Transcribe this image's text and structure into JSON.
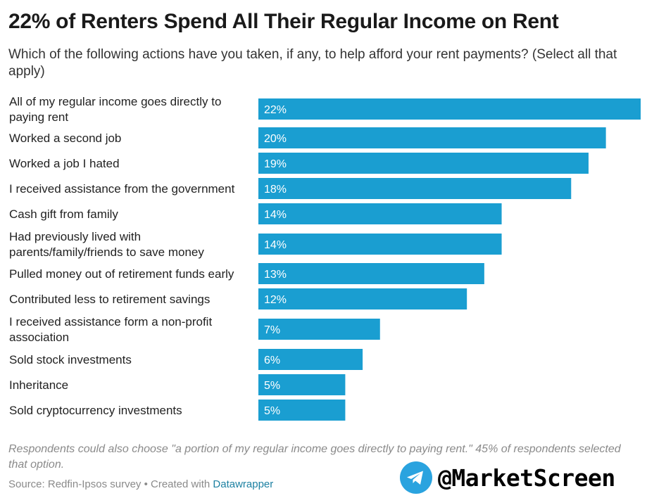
{
  "header": {
    "title": "22% of Renters Spend All Their Regular Income on Rent",
    "subtitle": "Which of the following actions have you taken, if any, to help afford your rent payments? (Select all that apply)"
  },
  "chart_data": {
    "type": "bar",
    "orientation": "horizontal",
    "title": "22% of Renters Spend All Their Regular Income on Rent",
    "subtitle": "Which of the following actions have you taken, if any, to help afford your rent payments? (Select all that apply)",
    "xlim": [
      0,
      22
    ],
    "grid": false,
    "bar_color": "#1a9ed1",
    "categories": [
      [
        "All of my regular income goes directly to",
        "paying rent"
      ],
      [
        "Worked a second job"
      ],
      [
        "Worked a job I hated"
      ],
      [
        "I received assistance from the government"
      ],
      [
        "Cash gift from family"
      ],
      [
        "Had previously lived with",
        "parents/family/friends to save money"
      ],
      [
        "Pulled money out of retirement funds early"
      ],
      [
        "Contributed less to retirement savings"
      ],
      [
        "I received assistance form a non-profit",
        "association"
      ],
      [
        "Sold stock investments"
      ],
      [
        "Inheritance"
      ],
      [
        "Sold cryptocurrency investments"
      ]
    ],
    "values": [
      22,
      20,
      19,
      18,
      14,
      14,
      13,
      12,
      7,
      6,
      5,
      5
    ],
    "value_labels": [
      "22%",
      "20%",
      "19%",
      "18%",
      "14%",
      "14%",
      "13%",
      "12%",
      "7%",
      "6%",
      "5%",
      "5%"
    ]
  },
  "footer": {
    "note": "Respondents could also choose \"a portion of my regular income goes directly to paying rent.\" 45% of respondents selected that option.",
    "source_prefix": "Source: Redfin-Ipsos survey • Created with ",
    "source_link": "Datawrapper"
  },
  "branding": {
    "icon": "telegram-icon",
    "handle": "@MarketScreen",
    "icon_color": "#2aa3df"
  }
}
